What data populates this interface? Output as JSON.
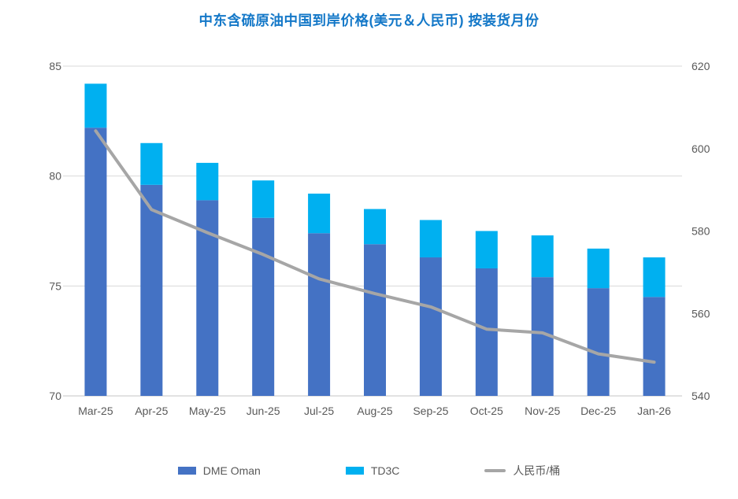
{
  "title": "中东含硫原油中国到岸价格(美元＆人民币) 按装货月份",
  "legend": {
    "dme_label": "DME Oman",
    "td3c_label": "TD3C",
    "rmb_label": "人民币/桶"
  },
  "colors": {
    "dme_bar": "#4472C4",
    "td3c_bar": "#00B0F0",
    "rmb_line": "#A6A6A6",
    "title_text": "#1478C8",
    "axis_text": "#595959",
    "gridline": "#D9D9D9",
    "axis_line": "#C6C6C6"
  },
  "chart_data": {
    "type": "bar",
    "subtype": "stacked-column-with-line",
    "title": "中东含硫原油中国到岸价格(美元＆人民币) 按装货月份",
    "categories": [
      "Mar-25",
      "Apr-25",
      "May-25",
      "Jun-25",
      "Jul-25",
      "Aug-25",
      "Sep-25",
      "Oct-25",
      "Nov-25",
      "Dec-25",
      "Jan-26"
    ],
    "series": [
      {
        "name": "DME Oman",
        "type": "bar",
        "axis": "left",
        "color": "#4472C4",
        "values": [
          82.2,
          79.6,
          78.9,
          78.1,
          77.4,
          76.9,
          76.3,
          75.8,
          75.4,
          74.9,
          74.5
        ]
      },
      {
        "name": "TD3C",
        "type": "bar",
        "axis": "left",
        "color": "#00B0F0",
        "values": [
          2.0,
          1.9,
          1.7,
          1.7,
          1.8,
          1.6,
          1.7,
          1.7,
          1.9,
          1.8,
          1.8
        ]
      },
      {
        "name": "人民币/桶",
        "type": "line",
        "axis": "right",
        "color": "#A6A6A6",
        "values": [
          604.3,
          585.2,
          579.6,
          574.3,
          568.4,
          564.8,
          561.6,
          556.2,
          555.3,
          550.2,
          548.2
        ]
      }
    ],
    "stacked_totals": [
      84.2,
      81.5,
      80.6,
      79.8,
      79.2,
      78.5,
      78.0,
      77.5,
      77.3,
      76.7,
      76.3
    ],
    "left_axis": {
      "min": 70,
      "max": 85,
      "tick_labels": [
        "85",
        "80",
        "75",
        "70"
      ],
      "tick_values": [
        85,
        80,
        75,
        70
      ]
    },
    "right_axis": {
      "min": 540,
      "max": 620,
      "tick_labels": [
        "620",
        "600",
        "580",
        "560",
        "540"
      ],
      "tick_values": [
        620,
        600,
        580,
        560,
        540
      ]
    },
    "grid": true,
    "legend_position": "bottom"
  }
}
